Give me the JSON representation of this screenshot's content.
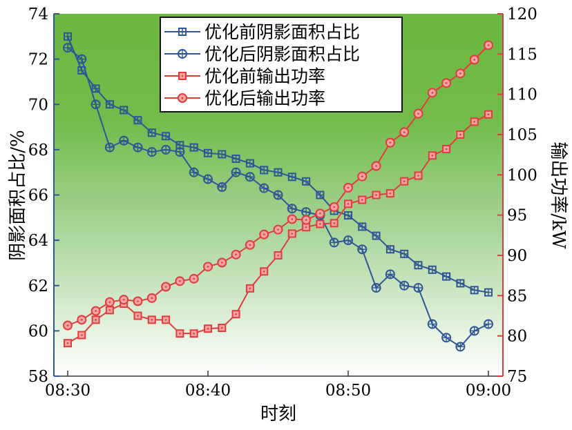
{
  "chart_data": {
    "type": "line",
    "title": "",
    "xlabel": "时刻",
    "ylabel_left": "阴影面积占比/%",
    "ylabel_right": "输出功率/kW",
    "x_ticks": [
      "08:30",
      "08:40",
      "08:50",
      "09:00"
    ],
    "x_range_minutes": [
      0,
      30
    ],
    "ylim_left": [
      58,
      74
    ],
    "ylim_right": [
      75,
      120
    ],
    "yticks_left": [
      58,
      60,
      62,
      64,
      66,
      68,
      70,
      72,
      74
    ],
    "yticks_right": [
      75,
      80,
      85,
      90,
      95,
      100,
      105,
      110,
      115,
      120
    ],
    "legend_placement": "top-center",
    "grid": false,
    "background": "gradient green (top) to white (bottom)",
    "x": [
      "08:30",
      "08:31",
      "08:32",
      "08:33",
      "08:34",
      "08:35",
      "08:36",
      "08:37",
      "08:38",
      "08:39",
      "08:40",
      "08:41",
      "08:42",
      "08:43",
      "08:44",
      "08:45",
      "08:46",
      "08:47",
      "08:48",
      "08:49",
      "08:50",
      "08:51",
      "08:52",
      "08:53",
      "08:54",
      "08:55",
      "08:56",
      "08:57",
      "08:58",
      "08:59",
      "09:00"
    ],
    "series": [
      {
        "name": "优化前阴影面积占比",
        "axis": "left",
        "marker": "square-plus",
        "color": "#2f5597",
        "values": [
          73.0,
          71.5,
          70.7,
          70.0,
          69.75,
          69.3,
          68.75,
          68.6,
          68.2,
          68.1,
          67.85,
          67.8,
          67.6,
          67.4,
          67.1,
          67.0,
          66.8,
          66.6,
          66.0,
          65.3,
          65.1,
          64.6,
          64.2,
          63.6,
          63.4,
          62.9,
          62.7,
          62.4,
          62.1,
          61.8,
          61.7
        ]
      },
      {
        "name": "优化后阴影面积占比",
        "axis": "left",
        "marker": "circle-plus",
        "color": "#2f5597",
        "values": [
          72.5,
          72.0,
          70.0,
          68.1,
          68.4,
          68.1,
          67.9,
          68.0,
          67.9,
          67.0,
          66.7,
          66.35,
          67.0,
          66.8,
          66.3,
          66.0,
          65.4,
          65.25,
          65.1,
          63.9,
          64.0,
          63.6,
          61.9,
          62.5,
          62.0,
          61.9,
          60.3,
          59.7,
          59.3,
          60.0,
          60.3
        ]
      },
      {
        "name": "优化前输出功率",
        "axis": "right",
        "marker": "square-dot",
        "color": "#e03c3c",
        "values": [
          79.1,
          80.1,
          82.0,
          83.2,
          84.0,
          82.5,
          82.0,
          82.0,
          80.3,
          80.3,
          80.9,
          81.0,
          82.7,
          85.9,
          88.0,
          90.0,
          92.7,
          93.5,
          93.9,
          94.0,
          96.4,
          96.9,
          97.5,
          97.7,
          99.2,
          99.9,
          102.4,
          103.2,
          105.0,
          106.6,
          107.5
        ]
      },
      {
        "name": "优化后输出功率",
        "axis": "right",
        "marker": "circle-dot",
        "color": "#e03c3c",
        "values": [
          81.3,
          82.0,
          83.1,
          84.2,
          84.5,
          84.3,
          84.7,
          86.1,
          86.8,
          87.1,
          88.6,
          89.1,
          90.1,
          91.3,
          92.6,
          93.2,
          94.5,
          94.4,
          95.2,
          96.0,
          98.4,
          99.8,
          101.1,
          104.0,
          105.3,
          107.6,
          110.2,
          111.4,
          112.6,
          114.3,
          116.1
        ]
      }
    ]
  }
}
